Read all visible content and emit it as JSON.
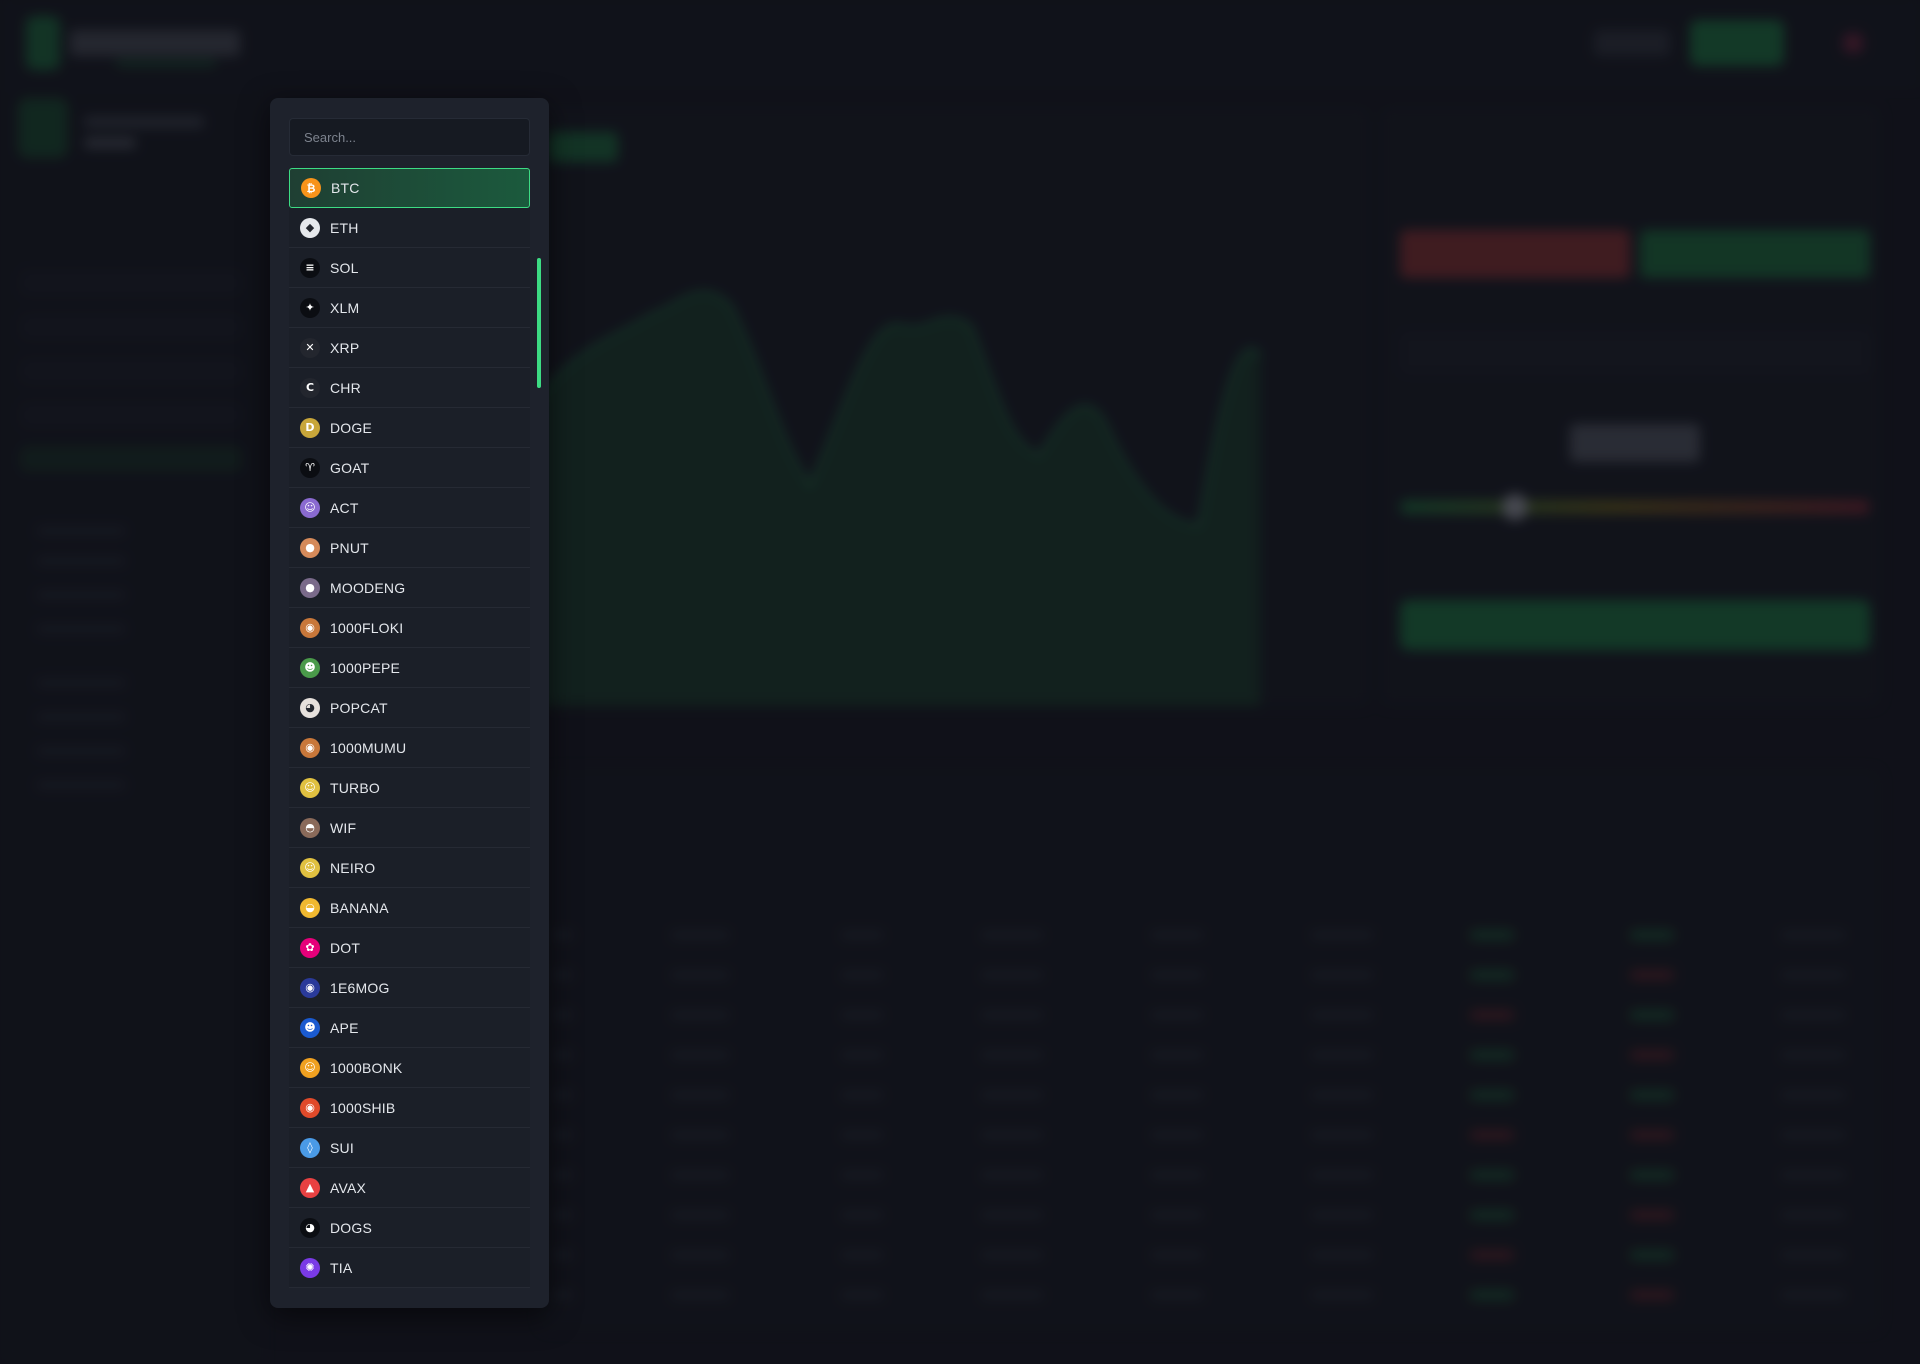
{
  "search": {
    "placeholder": "Search..."
  },
  "symbols": [
    {
      "label": "BTC",
      "icon": "btc-icon",
      "glyph": "₿",
      "color": "#f7931a",
      "selected": true
    },
    {
      "label": "ETH",
      "icon": "eth-icon",
      "glyph": "◆",
      "color": "#e6e8ec"
    },
    {
      "label": "SOL",
      "icon": "sol-icon",
      "glyph": "≡",
      "color": "#0b0d12"
    },
    {
      "label": "XLM",
      "icon": "xlm-icon",
      "glyph": "✦",
      "color": "#0b0d12"
    },
    {
      "label": "XRP",
      "icon": "xrp-icon",
      "glyph": "✕",
      "color": "#23262e"
    },
    {
      "label": "CHR",
      "icon": "chr-icon",
      "glyph": "C",
      "color": "#23262e"
    },
    {
      "label": "DOGE",
      "icon": "doge-icon",
      "glyph": "D",
      "color": "#c8a63a"
    },
    {
      "label": "GOAT",
      "icon": "goat-icon",
      "glyph": "♈",
      "color": "#0b0d12"
    },
    {
      "label": "ACT",
      "icon": "act-icon",
      "glyph": "☺",
      "color": "#8a6ad0"
    },
    {
      "label": "PNUT",
      "icon": "pnut-icon",
      "glyph": "●",
      "color": "#d58a5a"
    },
    {
      "label": "MOODENG",
      "icon": "moodeng-icon",
      "glyph": "●",
      "color": "#7a6a8a"
    },
    {
      "label": "1000FLOKI",
      "icon": "floki-icon",
      "glyph": "◉",
      "color": "#c8773a"
    },
    {
      "label": "1000PEPE",
      "icon": "pepe-icon",
      "glyph": "☻",
      "color": "#4a9a4a"
    },
    {
      "label": "POPCAT",
      "icon": "popcat-icon",
      "glyph": "◕",
      "color": "#e6e0dc"
    },
    {
      "label": "1000MUMU",
      "icon": "mumu-icon",
      "glyph": "◉",
      "color": "#c8773a"
    },
    {
      "label": "TURBO",
      "icon": "turbo-icon",
      "glyph": "☺",
      "color": "#e0c040"
    },
    {
      "label": "WIF",
      "icon": "wif-icon",
      "glyph": "◓",
      "color": "#8a6a5a"
    },
    {
      "label": "NEIRO",
      "icon": "neiro-icon",
      "glyph": "☺",
      "color": "#e0c040"
    },
    {
      "label": "BANANA",
      "icon": "banana-icon",
      "glyph": "◒",
      "color": "#f0b830"
    },
    {
      "label": "DOT",
      "icon": "dot-icon",
      "glyph": "✿",
      "color": "#e6007a"
    },
    {
      "label": "1E6MOG",
      "icon": "mog-icon",
      "glyph": "◉",
      "color": "#2a3a9a"
    },
    {
      "label": "APE",
      "icon": "ape-icon",
      "glyph": "☻",
      "color": "#1a5ad0"
    },
    {
      "label": "1000BONK",
      "icon": "bonk-icon",
      "glyph": "☺",
      "color": "#f0a020"
    },
    {
      "label": "1000SHIB",
      "icon": "shib-icon",
      "glyph": "◉",
      "color": "#e04a2a"
    },
    {
      "label": "SUI",
      "icon": "sui-icon",
      "glyph": "◊",
      "color": "#4a9ae6"
    },
    {
      "label": "AVAX",
      "icon": "avax-icon",
      "glyph": "▲",
      "color": "#e84142"
    },
    {
      "label": "DOGS",
      "icon": "dogs-icon",
      "glyph": "◕",
      "color": "#0b0d12"
    },
    {
      "label": "TIA",
      "icon": "tia-icon",
      "glyph": "✺",
      "color": "#7a3ae6"
    }
  ]
}
